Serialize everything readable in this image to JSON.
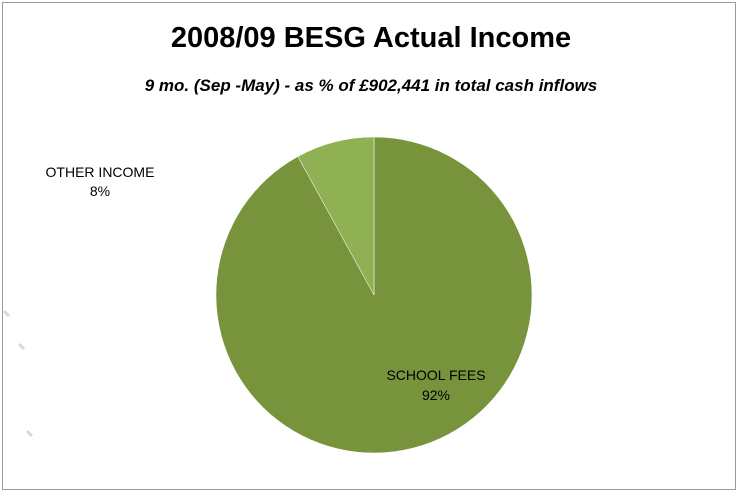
{
  "chart_data": {
    "type": "pie",
    "title": "2008/09 BESG Actual Income",
    "subtitle": "9 mo. (Sep -May) - as % of £902,441 in total cash inflows",
    "slices": [
      {
        "name": "SCHOOL FEES",
        "value": 92,
        "label": "92%",
        "color": "#77933c"
      },
      {
        "name": "OTHER INCOME",
        "value": 8,
        "label": "8%",
        "color": "#8fb154"
      }
    ],
    "legend": "none",
    "start_angle_deg": 0,
    "direction": "clockwise"
  }
}
